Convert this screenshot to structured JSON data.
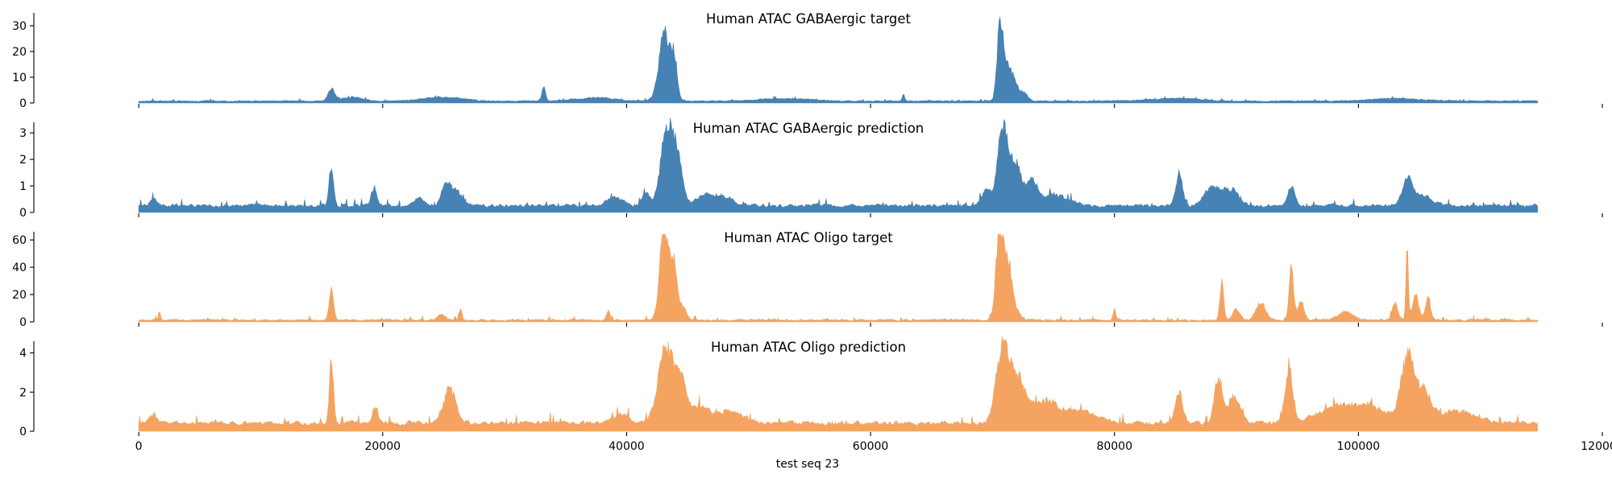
{
  "chart_data": {
    "type": "area",
    "xlabel": "test seq 23",
    "x_range": [
      0,
      114688
    ],
    "xlim": [
      -8600,
      120000
    ],
    "x_ticks": [
      0,
      20000,
      40000,
      60000,
      80000,
      100000,
      120000
    ],
    "x_tick_labels": [
      "0",
      "20000",
      "40000",
      "60000",
      "80000",
      "100000",
      "120000"
    ],
    "panels": [
      {
        "title": "Human ATAC GABAergic target",
        "color": "#4682b4",
        "ylim": [
          0,
          35
        ],
        "y_ticks": [
          0,
          10,
          20,
          30
        ],
        "y_tick_labels": [
          "0",
          "10",
          "20",
          "30"
        ],
        "baseline": 0.5,
        "noise": 0.5,
        "clip": 40,
        "peaks": [
          [
            15800,
            5,
            250
          ],
          [
            17500,
            1.5,
            800
          ],
          [
            25000,
            1.5,
            1500
          ],
          [
            33200,
            5.5,
            150
          ],
          [
            37500,
            1.3,
            1500
          ],
          [
            43100,
            26,
            450
          ],
          [
            43900,
            14,
            250
          ],
          [
            53000,
            1,
            2000
          ],
          [
            62700,
            2.5,
            100
          ],
          [
            70600,
            27,
            220
          ],
          [
            71100,
            14,
            350
          ],
          [
            71800,
            7,
            300
          ],
          [
            72600,
            3,
            300
          ],
          [
            85000,
            1,
            2000
          ],
          [
            103000,
            1,
            2000
          ]
        ]
      },
      {
        "title": "Human ATAC GABAergic prediction",
        "color": "#4682b4",
        "ylim": [
          0,
          3.4
        ],
        "y_ticks": [
          0,
          1,
          2,
          3
        ],
        "y_tick_labels": [
          "0",
          "1",
          "2",
          "3"
        ],
        "baseline": 0.15,
        "noise": 0.18,
        "clip": 5,
        "peaks": [
          [
            1200,
            0.35,
            250
          ],
          [
            15800,
            1.6,
            170
          ],
          [
            19300,
            0.7,
            220
          ],
          [
            23000,
            0.25,
            400
          ],
          [
            25200,
            0.7,
            350
          ],
          [
            26000,
            0.6,
            500
          ],
          [
            39000,
            0.35,
            600
          ],
          [
            41600,
            0.5,
            300
          ],
          [
            43300,
            2.9,
            500
          ],
          [
            44200,
            1.6,
            400
          ],
          [
            46500,
            0.4,
            700
          ],
          [
            48000,
            0.3,
            800
          ],
          [
            69500,
            0.6,
            400
          ],
          [
            70800,
            2.9,
            380
          ],
          [
            71800,
            1.6,
            500
          ],
          [
            73200,
            0.7,
            500
          ],
          [
            75000,
            0.4,
            1200
          ],
          [
            85300,
            1.2,
            280
          ],
          [
            88000,
            0.7,
            600
          ],
          [
            89500,
            0.6,
            600
          ],
          [
            94500,
            0.7,
            300
          ],
          [
            104000,
            0.8,
            400
          ],
          [
            105000,
            0.4,
            900
          ]
        ]
      },
      {
        "title": "Human ATAC Oligo target",
        "color": "#f4a460",
        "ylim": [
          0,
          66
        ],
        "y_ticks": [
          0,
          20,
          40,
          60
        ],
        "y_tick_labels": [
          "0",
          "20",
          "40",
          "60"
        ],
        "baseline": 0.3,
        "noise": 1.8,
        "clip": 64,
        "peaks": [
          [
            1700,
            6,
            80
          ],
          [
            15800,
            22,
            180
          ],
          [
            24800,
            4,
            300
          ],
          [
            26400,
            8,
            120
          ],
          [
            38500,
            6,
            150
          ],
          [
            43100,
            70,
            350
          ],
          [
            43900,
            40,
            250
          ],
          [
            44600,
            10,
            300
          ],
          [
            70600,
            70,
            300
          ],
          [
            71300,
            40,
            300
          ],
          [
            72000,
            6,
            300
          ],
          [
            80000,
            8,
            100
          ],
          [
            88800,
            30,
            150
          ],
          [
            90000,
            8,
            300
          ],
          [
            92000,
            12,
            400
          ],
          [
            94500,
            40,
            180
          ],
          [
            95300,
            14,
            250
          ],
          [
            99000,
            6,
            600
          ],
          [
            103000,
            12,
            250
          ],
          [
            104000,
            48,
            100
          ],
          [
            104700,
            18,
            250
          ],
          [
            105700,
            18,
            200
          ]
        ]
      },
      {
        "title": "Human ATAC Oligo prediction",
        "color": "#f4a460",
        "ylim": [
          0,
          4.6
        ],
        "y_ticks": [
          0,
          2,
          4
        ],
        "y_tick_labels": [
          "0",
          "2",
          "4"
        ],
        "baseline": 0.25,
        "noise": 0.3,
        "clip": 6,
        "peaks": [
          [
            1200,
            0.4,
            300
          ],
          [
            15800,
            3.0,
            170
          ],
          [
            19400,
            0.9,
            200
          ],
          [
            25500,
            1.7,
            500
          ],
          [
            39500,
            0.5,
            600
          ],
          [
            43200,
            3.8,
            600
          ],
          [
            44400,
            2.0,
            500
          ],
          [
            46000,
            0.8,
            800
          ],
          [
            48500,
            0.6,
            1000
          ],
          [
            70800,
            3.9,
            500
          ],
          [
            72000,
            2.2,
            600
          ],
          [
            74000,
            1.0,
            1200
          ],
          [
            77000,
            0.6,
            1500
          ],
          [
            85300,
            1.6,
            300
          ],
          [
            88500,
            2.4,
            300
          ],
          [
            89800,
            1.4,
            500
          ],
          [
            94300,
            2.9,
            300
          ],
          [
            98000,
            0.7,
            1500
          ],
          [
            101000,
            0.8,
            1500
          ],
          [
            104000,
            3.3,
            500
          ],
          [
            105300,
            1.6,
            600
          ],
          [
            108000,
            0.6,
            1500
          ]
        ]
      }
    ]
  }
}
